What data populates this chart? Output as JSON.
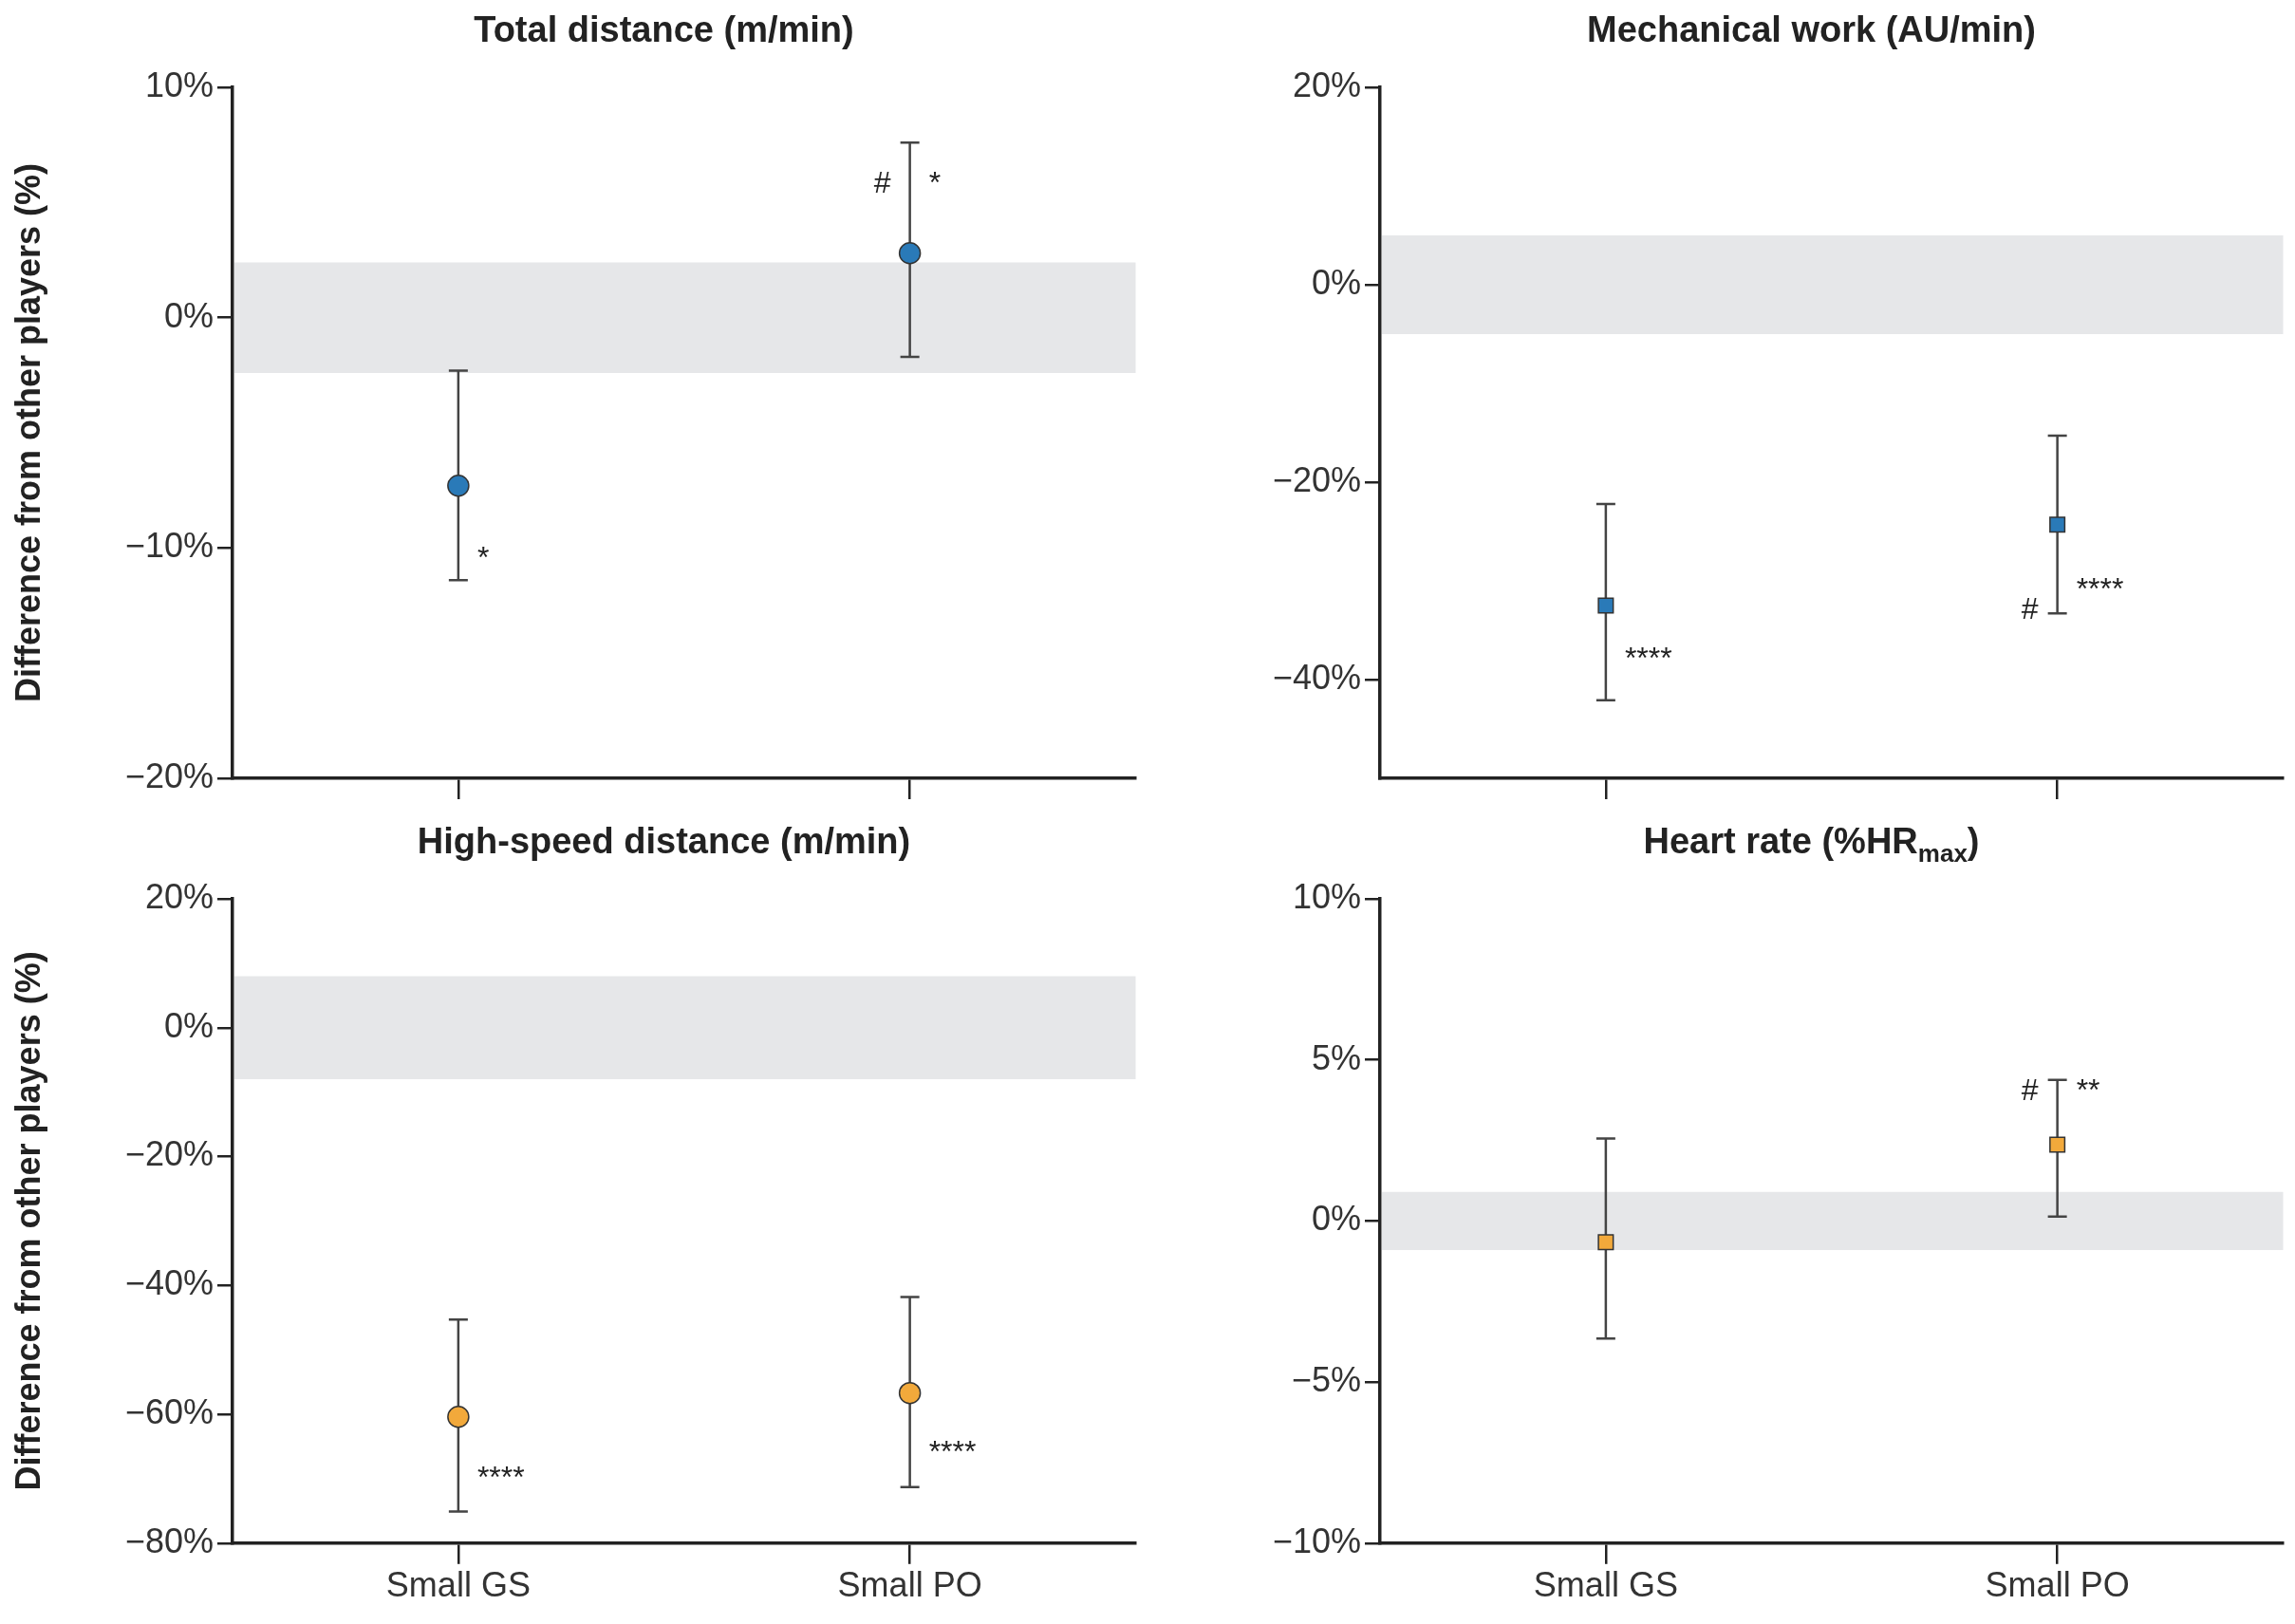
{
  "chart_data": [
    {
      "type": "scatter",
      "title": "Total distance (m/min)",
      "ylabel": "Difference from other players (%)",
      "categories": [
        "Small GS",
        "Small PO"
      ],
      "marker": "circle",
      "tick_labels": "y",
      "series": [
        {
          "color": "#2a7ab8",
          "values": [
            -7.3,
            2.8
          ],
          "errors": [
            [
              -11.4,
              -2.3
            ],
            [
              -1.7,
              7.6
            ]
          ]
        }
      ],
      "ylim": [
        -20,
        10
      ],
      "yticks": [
        {
          "value": -20,
          "label": "−20%"
        },
        {
          "value": -10,
          "label": "−10%"
        },
        {
          "value": 0,
          "label": "0%"
        },
        {
          "value": 10,
          "label": "10%"
        }
      ],
      "bands": [
        {
          "axis": "y",
          "from": -2.4,
          "to": 2.4,
          "color": "#e6e7e9"
        }
      ],
      "annotations": [
        {
          "text": "*",
          "x": "Small GS",
          "y": -10.5
        },
        {
          "text": "#",
          "x": "Small PO",
          "y": 5.8
        },
        {
          "text": "*",
          "x": "Small PO",
          "y": 5.8
        }
      ]
    },
    {
      "type": "scatter",
      "title": "Mechanical work (AU/min)",
      "categories": [
        "Small GS",
        "Small PO"
      ],
      "marker": "square",
      "tick_labels": "y",
      "series": [
        {
          "color": "#2a7ab8",
          "values": [
            -32.5,
            -24.3
          ],
          "errors": [
            [
              -42.1,
              -22.2
            ],
            [
              -33.3,
              -15.3
            ]
          ]
        }
      ],
      "ylim": [
        -50,
        20
      ],
      "yticks": [
        {
          "value": -40,
          "label": "−40%"
        },
        {
          "value": -20,
          "label": "−20%"
        },
        {
          "value": 0,
          "label": "0%"
        },
        {
          "value": 20,
          "label": "20%"
        }
      ],
      "bands": [
        {
          "axis": "y",
          "from": -5,
          "to": 5,
          "color": "#e6e7e9"
        }
      ],
      "annotations": [
        {
          "text": "****",
          "x": "Small GS",
          "y": -38
        },
        {
          "text": "#",
          "x": "Small PO",
          "y": -33
        },
        {
          "text": "****",
          "x": "Small PO",
          "y": -31
        }
      ]
    },
    {
      "type": "scatter",
      "title": "High-speed distance (m/min)",
      "ylabel": "Difference from other players (%)",
      "categories": [
        "Small GS",
        "Small PO"
      ],
      "marker": "circle",
      "series": [
        {
          "color": "#f2a93b",
          "values": [
            -60.4,
            -56.7
          ],
          "errors": [
            [
              -75.1,
              -45.3
            ],
            [
              -71.3,
              -41.8
            ]
          ]
        }
      ],
      "ylim": [
        -80,
        20
      ],
      "yticks": [
        {
          "value": -80,
          "label": "−80%"
        },
        {
          "value": -60,
          "label": "−60%"
        },
        {
          "value": -40,
          "label": "−40%"
        },
        {
          "value": -20,
          "label": "−20%"
        },
        {
          "value": 0,
          "label": "0%"
        },
        {
          "value": 20,
          "label": "20%"
        }
      ],
      "bands": [
        {
          "axis": "y",
          "from": -8,
          "to": 8,
          "color": "#e6e7e9"
        }
      ],
      "annotations": [
        {
          "text": "****",
          "x": "Small GS",
          "y": -70
        },
        {
          "text": "****",
          "x": "Small PO",
          "y": -66
        }
      ]
    },
    {
      "type": "scatter",
      "title": "Heart rate (%HR$_{max}$)",
      "categories": [
        "Small GS",
        "Small PO"
      ],
      "marker": "square",
      "series": [
        {
          "color": "#f2a93b",
          "values": [
            -0.66,
            2.37
          ],
          "errors": [
            [
              -3.65,
              2.56
            ],
            [
              0.14,
              4.38
            ]
          ]
        }
      ],
      "ylim": [
        -10,
        10
      ],
      "yticks": [
        {
          "value": -10,
          "label": "−10%"
        },
        {
          "value": -5,
          "label": "−5%"
        },
        {
          "value": 0,
          "label": "0%"
        },
        {
          "value": 5,
          "label": "5%"
        },
        {
          "value": 10,
          "label": "10%"
        }
      ],
      "bands": [
        {
          "axis": "y",
          "from": -0.9,
          "to": 0.9,
          "color": "#e6e7e9"
        }
      ],
      "annotations": [
        {
          "text": "#",
          "x": "Small PO",
          "y": 4
        },
        {
          "text": "**",
          "x": "Small PO",
          "y": 4
        }
      ]
    }
  ]
}
